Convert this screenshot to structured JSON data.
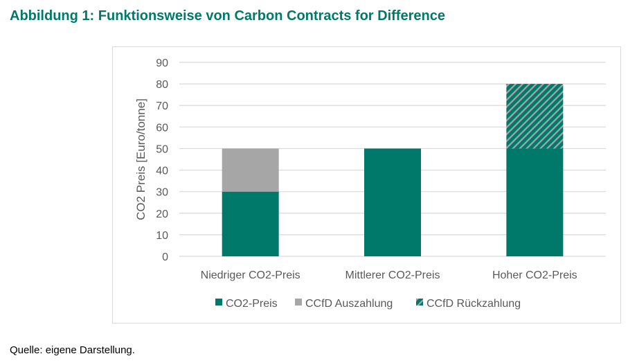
{
  "title": "Abbildung 1: Funktionsweise von Carbon Contracts for Difference",
  "source": "Quelle: eigene Darstellung.",
  "chart_data": {
    "type": "bar",
    "stacked": true,
    "title": "",
    "xlabel": "",
    "ylabel": "CO2 Preis [Euro/tonne]",
    "ylim": [
      0,
      90
    ],
    "yticks": [
      0,
      10,
      20,
      30,
      40,
      50,
      60,
      70,
      80,
      90
    ],
    "grid": true,
    "legend_position": "bottom",
    "categories": [
      "Niedriger CO2-Preis",
      "Mittlerer CO2-Preis",
      "Hoher CO2-Preis"
    ],
    "series": [
      {
        "name": "CO2-Preis",
        "values": [
          30,
          50,
          50
        ],
        "color": "#00796b",
        "pattern": "solid"
      },
      {
        "name": "CCfD Auszahlung",
        "values": [
          20,
          0,
          0
        ],
        "color": "#a6a6a6",
        "pattern": "solid"
      },
      {
        "name": "CCfD Rückzahlung",
        "values": [
          0,
          0,
          30
        ],
        "color": "#00796b",
        "pattern": "hatch"
      }
    ]
  }
}
